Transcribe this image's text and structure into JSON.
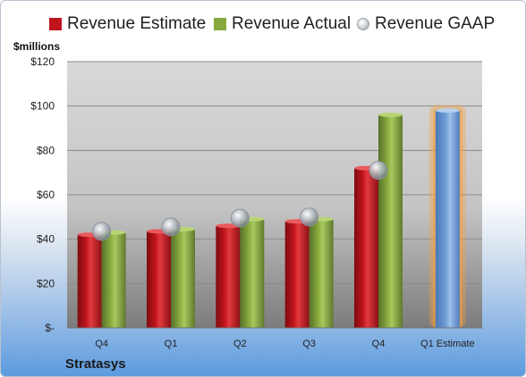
{
  "legend": {
    "estimate": "Revenue Estimate",
    "actual": "Revenue Actual",
    "gaap": "Revenue GAAP"
  },
  "units_label": "$millions",
  "company": "Stratasys",
  "colors": {
    "estimate": "#c0141c",
    "actual": "#86a83c",
    "gaap": "#b7bec6",
    "forecast": "#6d9bd4",
    "forecast_glow": "#f6a13a"
  },
  "chart_data": {
    "type": "bar",
    "categories": [
      "Q4",
      "Q1",
      "Q2",
      "Q3",
      "Q4",
      "Q1 Estimate"
    ],
    "series": [
      {
        "name": "Revenue Estimate",
        "values": [
          42,
          43.5,
          46,
          48,
          72,
          null
        ]
      },
      {
        "name": "Revenue Actual",
        "values": [
          43,
          44.5,
          49,
          49,
          96,
          null
        ]
      },
      {
        "name": "Revenue GAAP",
        "values": [
          43.5,
          45.5,
          49.5,
          50,
          71,
          null
        ]
      }
    ],
    "forecast": {
      "category": "Q1 Estimate",
      "value": 98
    },
    "yticks": [
      "$-",
      "$20",
      "$40",
      "$60",
      "$80",
      "$100",
      "$120"
    ],
    "ylim": [
      0,
      120
    ],
    "ylabel": "$millions",
    "grid": true,
    "legend_position": "top"
  }
}
